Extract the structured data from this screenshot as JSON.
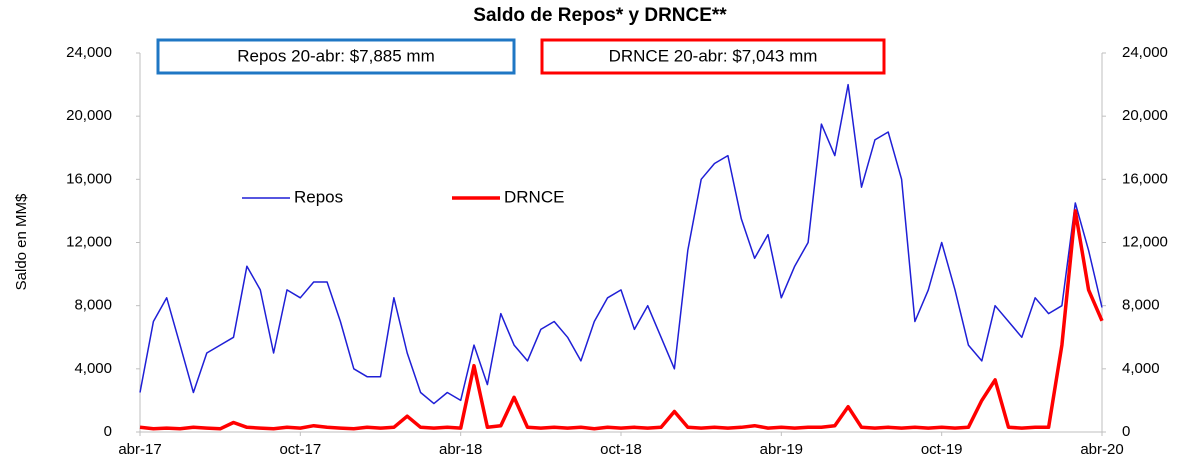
{
  "chart_data": {
    "type": "line",
    "title": "Saldo de Repos* y DRNCE**",
    "y_label": "Saldo en MM$",
    "annotations": [
      "Repos 20-abr: $7,885 mm",
      "DRNCE 20-abr: $7,043 mm"
    ],
    "annotation_colors": [
      "#1f77c4",
      "#ff0000"
    ],
    "categories": [
      "abr-17",
      null,
      null,
      null,
      null,
      null,
      null,
      null,
      null,
      null,
      null,
      null,
      "oct-17",
      null,
      null,
      null,
      null,
      null,
      null,
      null,
      null,
      null,
      null,
      null,
      "abr-18",
      null,
      null,
      null,
      null,
      null,
      null,
      null,
      null,
      null,
      null,
      null,
      "oct-18",
      null,
      null,
      null,
      null,
      null,
      null,
      null,
      null,
      null,
      null,
      null,
      "abr-19",
      null,
      null,
      null,
      null,
      null,
      null,
      null,
      null,
      null,
      null,
      null,
      "oct-19",
      null,
      null,
      null,
      null,
      null,
      null,
      null,
      null,
      null,
      null,
      null,
      "abr-20"
    ],
    "series": [
      {
        "name": "Repos",
        "color": "#1f1fd6",
        "values": [
          2500,
          7000,
          8500,
          5500,
          2500,
          5000,
          5500,
          6000,
          10500,
          9000,
          5000,
          9000,
          8500,
          9500,
          9500,
          7000,
          4000,
          3500,
          3500,
          8500,
          5000,
          2500,
          1800,
          2500,
          2000,
          5500,
          3000,
          7500,
          5500,
          4500,
          6500,
          7000,
          6000,
          4500,
          7000,
          8500,
          9000,
          6500,
          8000,
          6000,
          4000,
          11500,
          16000,
          17000,
          17500,
          13500,
          11000,
          12500,
          8500,
          10500,
          12000,
          19500,
          17500,
          22000,
          15500,
          18500,
          19000,
          16000,
          7000,
          9000,
          12000,
          9000,
          5500,
          4500,
          8000,
          7000,
          6000,
          8500,
          7500,
          8000,
          14500,
          11500,
          7885
        ]
      },
      {
        "name": "DRNCE",
        "color": "#ff0000",
        "values": [
          300,
          200,
          250,
          200,
          300,
          250,
          200,
          600,
          300,
          250,
          200,
          300,
          250,
          400,
          300,
          250,
          200,
          300,
          250,
          300,
          1000,
          300,
          250,
          300,
          250,
          4200,
          300,
          400,
          2200,
          300,
          250,
          300,
          250,
          300,
          200,
          300,
          250,
          300,
          250,
          300,
          1300,
          300,
          250,
          300,
          250,
          300,
          400,
          250,
          300,
          250,
          300,
          300,
          400,
          1600,
          300,
          250,
          300,
          250,
          300,
          250,
          300,
          250,
          300,
          2000,
          3300,
          300,
          250,
          300,
          300,
          5500,
          14000,
          9000,
          7043
        ]
      }
    ],
    "ylim": [
      0,
      24000
    ],
    "yticks": [
      0,
      {
        "value": 4000,
        "label": "4,000"
      },
      {
        "value": 8000,
        "label": "8,000"
      },
      {
        "value": 12000,
        "label": "12,000"
      },
      {
        "value": 16000,
        "label": "16,000"
      },
      {
        "value": 20000,
        "label": "20,000"
      },
      {
        "value": 24000,
        "label": "24,000"
      }
    ],
    "y2lim": [
      0,
      24000
    ],
    "y2ticks": [
      0,
      {
        "value": 4000,
        "label": "4,000"
      },
      {
        "value": 8000,
        "label": "8,000"
      },
      {
        "value": 12000,
        "label": "12,000"
      },
      {
        "value": 16000,
        "label": "16,000"
      },
      {
        "value": 20000,
        "label": "20,000"
      },
      {
        "value": 24000,
        "label": "24,000"
      }
    ],
    "legend": "inside-left",
    "grid": false
  }
}
